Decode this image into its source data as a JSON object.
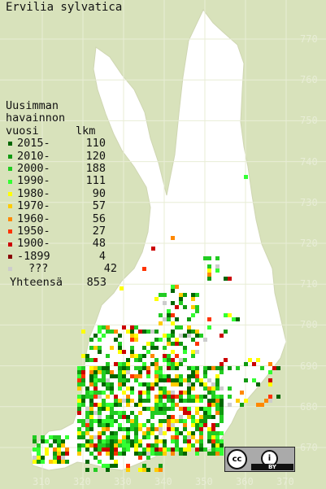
{
  "title": "Ervilia sylvatica",
  "legend": {
    "header_lines": [
      "Uusimman",
      "havainnon"
    ],
    "col_label": "vuosi",
    "col_count": "lkm",
    "rows": [
      {
        "label": "2015-",
        "count": "110",
        "color": "#006600"
      },
      {
        "label": "2010-",
        "count": "120",
        "color": "#119911"
      },
      {
        "label": "2000-",
        "count": "188",
        "color": "#22cc22"
      },
      {
        "label": "1990-",
        "count": "111",
        "color": "#33ff33"
      },
      {
        "label": "1980-",
        "count": "90",
        "color": "#ffff00"
      },
      {
        "label": "1970-",
        "count": "57",
        "color": "#ffcc00"
      },
      {
        "label": "1960-",
        "count": "56",
        "color": "#ff8800"
      },
      {
        "label": "1950-",
        "count": "27",
        "color": "#ff3300"
      },
      {
        "label": "1900-",
        "count": "48",
        "color": "#cc0000"
      },
      {
        "label": "-1899",
        "count": "4",
        "color": "#880000"
      },
      {
        "label": "???",
        "count": "42",
        "color": "#cccccc"
      }
    ],
    "total_label": "Yhteensä",
    "total_count": "853"
  },
  "grid_y_labels": [
    "770",
    "760",
    "750",
    "740",
    "730",
    "720",
    "710",
    "700",
    "690",
    "680",
    "670"
  ],
  "grid_x_labels": [
    "310",
    "320",
    "330",
    "340",
    "350",
    "360",
    "370"
  ],
  "colors": {
    "background": "#d8e2bb",
    "land": "#ffffff",
    "grid": "#e8edd6"
  },
  "license_badge": {
    "icon": "cc-icon",
    "by_icon": "person-icon",
    "text": "BY"
  }
}
